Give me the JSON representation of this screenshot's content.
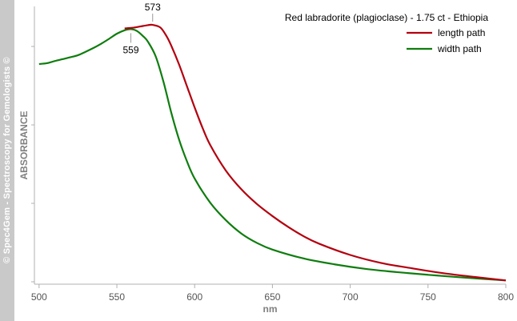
{
  "sidebar": {
    "text": "© Spec4Gem - Spectroscopy for Gemologists ©"
  },
  "colors": {
    "length": "#b3000f",
    "width": "#0f7d0f",
    "axis": "#b0b0b0",
    "sidebar": "#c9c9c9"
  },
  "chart_data": {
    "type": "line",
    "title": "Red labradorite (plagioclase) - 1.75 ct - Ethiopia",
    "xlabel": "nm",
    "ylabel": "ABSORBANCE",
    "xlim": [
      497,
      800
    ],
    "ylim": [
      0,
      1
    ],
    "xticks": [
      500,
      550,
      600,
      650,
      700,
      750,
      800
    ],
    "grid": false,
    "legend_position": "top-right",
    "series": [
      {
        "name": "length path",
        "color": "#b3000f",
        "x": [
          555,
          560,
          565,
          570,
          573,
          578,
          582,
          585,
          590,
          595,
          600,
          605,
          610,
          620,
          630,
          640,
          650,
          660,
          670,
          680,
          700,
          720,
          740,
          760,
          780,
          800
        ],
        "y": [
          0.945,
          0.947,
          0.952,
          0.957,
          0.958,
          0.948,
          0.915,
          0.88,
          0.81,
          0.73,
          0.65,
          0.575,
          0.51,
          0.415,
          0.345,
          0.29,
          0.245,
          0.205,
          0.17,
          0.142,
          0.1,
          0.07,
          0.05,
          0.032,
          0.018,
          0.005
        ]
      },
      {
        "name": "width path",
        "color": "#0f7d0f",
        "x": [
          500,
          505,
          510,
          515,
          520,
          525,
          530,
          535,
          540,
          545,
          550,
          555,
          559,
          563,
          567,
          570,
          575,
          580,
          585,
          590,
          595,
          600,
          610,
          620,
          630,
          640,
          650,
          670,
          690,
          710,
          730,
          750,
          770,
          800
        ],
        "y": [
          0.812,
          0.815,
          0.823,
          0.83,
          0.837,
          0.845,
          0.858,
          0.872,
          0.888,
          0.906,
          0.925,
          0.938,
          0.942,
          0.935,
          0.915,
          0.895,
          0.84,
          0.745,
          0.63,
          0.53,
          0.45,
          0.385,
          0.295,
          0.23,
          0.18,
          0.145,
          0.12,
          0.087,
          0.065,
          0.048,
          0.036,
          0.026,
          0.017,
          0.005
        ]
      }
    ],
    "annotations": [
      {
        "label": "573",
        "x": 573,
        "y": 0.958,
        "position": "above"
      },
      {
        "label": "559",
        "x": 559,
        "y": 0.942,
        "position": "below"
      }
    ]
  }
}
